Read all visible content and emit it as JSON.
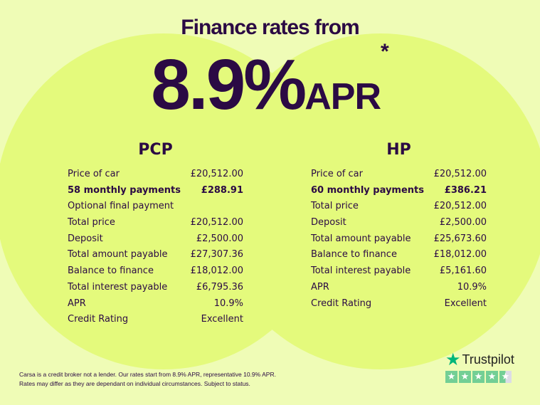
{
  "header": {
    "title": "Finance rates from",
    "rate": "8.9%",
    "apr": "APR",
    "asterisk": "*"
  },
  "pcp": {
    "heading": "PCP",
    "rows": [
      {
        "label": "Price of car",
        "value": "£20,512.00"
      },
      {
        "label": "58 monthly payments",
        "value": "£288.91",
        "bold": true
      },
      {
        "label": "Optional final payment",
        "value": ""
      },
      {
        "label": "Total price",
        "value": "£20,512.00"
      },
      {
        "label": "Deposit",
        "value": "£2,500.00"
      },
      {
        "label": "Total amount payable",
        "value": "£27,307.36"
      },
      {
        "label": "Balance to finance",
        "value": "£18,012.00"
      },
      {
        "label": "Total interest payable",
        "value": "£6,795.36"
      },
      {
        "label": "APR",
        "value": "10.9%"
      },
      {
        "label": "Credit Rating",
        "value": "Excellent"
      }
    ]
  },
  "hp": {
    "heading": "HP",
    "rows": [
      {
        "label": "Price of car",
        "value": "£20,512.00"
      },
      {
        "label": "60 monthly payments",
        "value": "£386.21",
        "bold": true
      },
      {
        "label": "Total price",
        "value": "£20,512.00"
      },
      {
        "label": "Deposit",
        "value": "£2,500.00"
      },
      {
        "label": "Total amount payable",
        "value": "£25,673.60"
      },
      {
        "label": "Balance to finance",
        "value": "£18,012.00"
      },
      {
        "label": "Total interest payable",
        "value": "£5,161.60"
      },
      {
        "label": "APR",
        "value": "10.9%"
      },
      {
        "label": "Credit Rating",
        "value": "Excellent"
      }
    ]
  },
  "disclaimer": {
    "line1": "Carsa is a credit broker not a lender. Our rates start from 8.9% APR, representative 10.9% APR.",
    "line2": "Rates may differ as they are dependant on individual circumstances. Subject to status."
  },
  "trustpilot": {
    "name": "Trustpilot",
    "rating_stars": 4.5,
    "brand_color": "#00b67a"
  }
}
